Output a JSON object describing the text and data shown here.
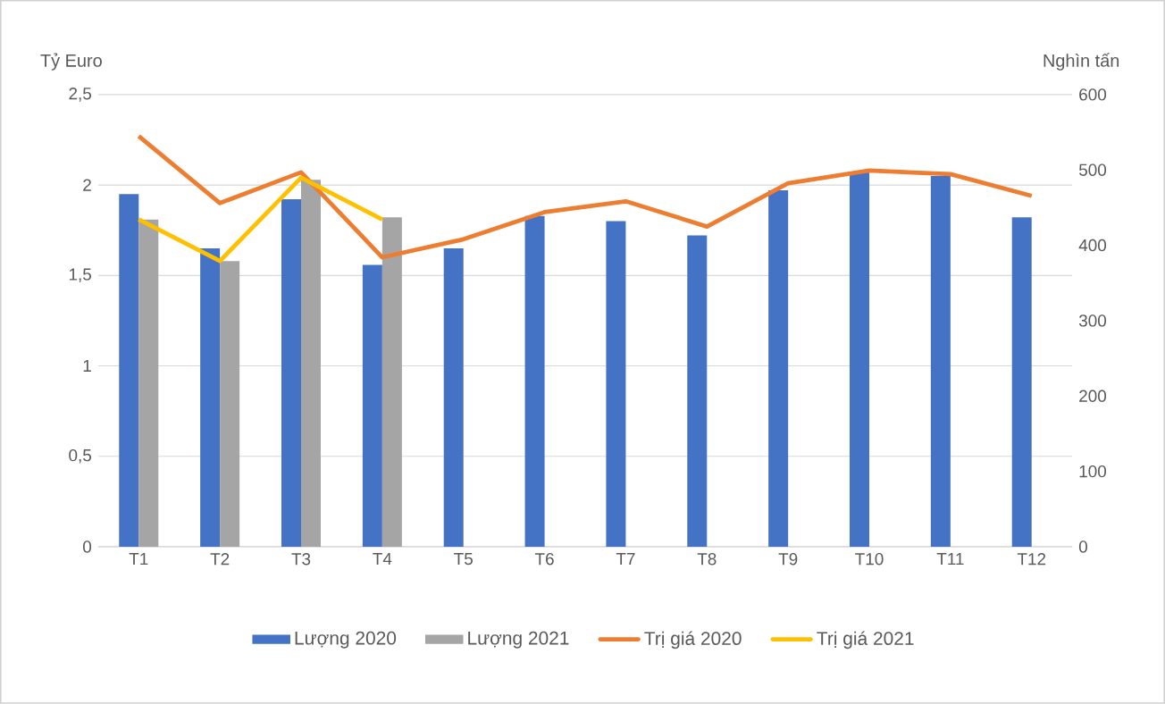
{
  "chart_data": {
    "type": "bar",
    "categories": [
      "T1",
      "T2",
      "T3",
      "T4",
      "T5",
      "T6",
      "T7",
      "T8",
      "T9",
      "T10",
      "T11",
      "T12"
    ],
    "ylabel": "Tỷ Euro",
    "y2label": "Nghìn tấn",
    "ylim": [
      0,
      2.5
    ],
    "yticks": [
      0,
      {
        "value": 0.5,
        "label": "0,5"
      },
      1,
      {
        "value": 1.5,
        "label": "1,5"
      },
      2,
      {
        "value": 2.5,
        "label": "2,5"
      }
    ],
    "y2lim": [
      0,
      600
    ],
    "y2ticks": [
      0,
      100,
      200,
      300,
      400,
      500,
      600
    ],
    "grid": "y",
    "legend": "bottom",
    "series": [
      {
        "name": "Lượng 2020",
        "axis": "y2",
        "color": "#4472c4",
        "values": [
          468,
          396,
          461,
          374,
          396,
          439,
          432,
          413,
          473,
          497,
          492,
          437
        ]
      },
      {
        "name": "Lượng 2021",
        "axis": "y2",
        "color": "#a5a5a5",
        "values": [
          434,
          379,
          487,
          437,
          null,
          null,
          null,
          null,
          null,
          null,
          null,
          null
        ]
      },
      {
        "name": "Trị giá 2020",
        "type": "line",
        "color": "#ed7d31",
        "values": [
          2.27,
          1.9,
          2.07,
          1.6,
          1.7,
          1.85,
          1.91,
          1.77,
          2.01,
          2.08,
          2.06,
          1.94
        ]
      },
      {
        "name": "Trị giá 2021",
        "type": "line",
        "color": "#ffc000",
        "values": [
          1.81,
          1.58,
          2.04,
          1.81,
          null,
          null,
          null,
          null,
          null,
          null,
          null,
          null
        ]
      }
    ]
  }
}
